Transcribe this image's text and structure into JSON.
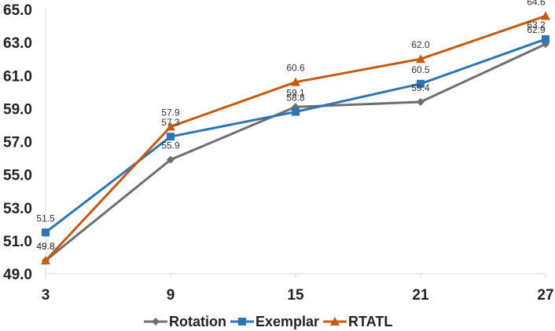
{
  "chart_data": {
    "type": "line",
    "title": "",
    "xlabel": "",
    "ylabel": "",
    "categories": [
      "3",
      "9",
      "15",
      "21",
      "27"
    ],
    "ylim": [
      49.0,
      65.0
    ],
    "yticks": [
      "49.0",
      "51.0",
      "53.0",
      "55.0",
      "57.0",
      "59.0",
      "61.0",
      "63.0",
      "65.0"
    ],
    "grid": false,
    "legend_position": "bottom",
    "series": [
      {
        "name": "Rotation",
        "color": "#6f6f6f",
        "marker": "diamond",
        "values": [
          49.8,
          55.9,
          59.1,
          59.4,
          62.9
        ],
        "labels": [
          "49.8",
          "55.9",
          "59.1",
          "59.4",
          "62.9"
        ]
      },
      {
        "name": "Exemplar",
        "color": "#2e75b6",
        "marker": "square",
        "values": [
          51.5,
          57.3,
          58.8,
          60.5,
          63.2
        ],
        "labels": [
          "51.5",
          "57.3",
          "58.8",
          "60.5",
          "63.2"
        ]
      },
      {
        "name": "RTATL",
        "color": "#c55a11",
        "marker": "triangle",
        "values": [
          49.8,
          57.9,
          60.6,
          62.0,
          64.6
        ],
        "labels": [
          "49.8",
          "57.9",
          "60.6",
          "62.0",
          "64.6"
        ]
      }
    ]
  }
}
